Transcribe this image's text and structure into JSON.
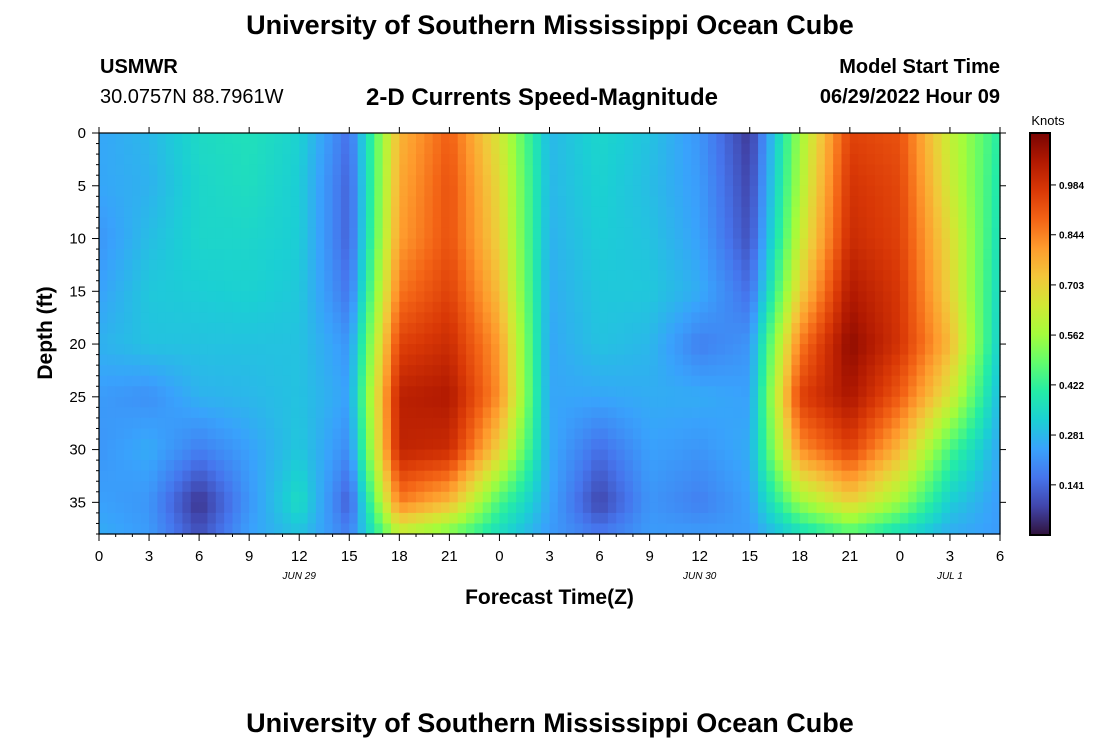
{
  "header": {
    "title": "University of Southern Mississippi Ocean Cube",
    "station": "USMWR",
    "coords": "30.0757N  88.7961W",
    "subtitle": "2-D Currents Speed-Magnitude",
    "model_start_label": "Model Start Time",
    "model_start_value": "06/29/2022 Hour 09"
  },
  "footer": {
    "title": "University of Southern Mississippi Ocean Cube"
  },
  "colors": {
    "colormap": [
      "#30123b",
      "#4145ab",
      "#4675ed",
      "#39a2fc",
      "#1bcfd4",
      "#24eca6",
      "#61fc6c",
      "#a4fc3b",
      "#d1e834",
      "#f3c63a",
      "#fe9b2d",
      "#f36315",
      "#d93806",
      "#b11901",
      "#7a0402"
    ]
  },
  "chart_data": {
    "type": "heatmap",
    "xlabel": "Forecast Time(Z)",
    "ylabel": "Depth (ft)",
    "colorbar_label": "Knots",
    "x_hours_from_start": [
      0,
      48
    ],
    "x_ticks": [
      {
        "h": 0,
        "label": "0"
      },
      {
        "h": 3,
        "label": "3"
      },
      {
        "h": 6,
        "label": "6"
      },
      {
        "h": 9,
        "label": "9"
      },
      {
        "h": 12,
        "label": "12"
      },
      {
        "h": 15,
        "label": "15"
      },
      {
        "h": 18,
        "label": "18"
      },
      {
        "h": 21,
        "label": "21"
      },
      {
        "h": 24,
        "label": "0"
      },
      {
        "h": 27,
        "label": "3"
      },
      {
        "h": 30,
        "label": "6"
      },
      {
        "h": 33,
        "label": "9"
      },
      {
        "h": 36,
        "label": "12"
      },
      {
        "h": 39,
        "label": "15"
      },
      {
        "h": 42,
        "label": "18"
      },
      {
        "h": 45,
        "label": "21"
      },
      {
        "h": 48,
        "label": "0"
      },
      {
        "h": 51,
        "label": "3"
      },
      {
        "h": 54,
        "label": "6"
      }
    ],
    "x_range_hours": [
      0,
      54
    ],
    "date_labels": [
      {
        "h": 12,
        "label": "JUN 29"
      },
      {
        "h": 36,
        "label": "JUN 30"
      },
      {
        "h": 51,
        "label": "JUL 1"
      }
    ],
    "y_ticks": [
      0,
      5,
      10,
      15,
      20,
      25,
      30,
      35
    ],
    "y_range": [
      0,
      38
    ],
    "colorbar_ticks": [
      0.141,
      0.281,
      0.422,
      0.562,
      0.703,
      0.844,
      0.984
    ],
    "colorbar_range": [
      0.0,
      1.13
    ],
    "speed_grid": {
      "x_step_hours": 3,
      "depths_ft": [
        0,
        5,
        10,
        15,
        20,
        25,
        30,
        35,
        38
      ],
      "columns": [
        [
          0.25,
          0.25,
          0.22,
          0.24,
          0.27,
          0.23,
          0.22,
          0.24,
          0.26
        ],
        [
          0.28,
          0.27,
          0.29,
          0.31,
          0.3,
          0.21,
          0.26,
          0.22,
          0.23
        ],
        [
          0.35,
          0.34,
          0.34,
          0.32,
          0.3,
          0.27,
          0.18,
          0.05,
          0.1
        ],
        [
          0.37,
          0.36,
          0.34,
          0.33,
          0.3,
          0.28,
          0.24,
          0.22,
          0.24
        ],
        [
          0.33,
          0.32,
          0.32,
          0.31,
          0.3,
          0.3,
          0.31,
          0.36,
          0.3
        ],
        [
          0.15,
          0.13,
          0.13,
          0.16,
          0.22,
          0.24,
          0.2,
          0.12,
          0.18
        ],
        [
          0.76,
          0.78,
          0.8,
          0.86,
          0.95,
          1.03,
          1.02,
          0.85,
          0.6
        ],
        [
          0.9,
          0.92,
          0.92,
          0.95,
          1.0,
          1.05,
          1.0,
          0.75,
          0.5
        ],
        [
          0.65,
          0.68,
          0.7,
          0.74,
          0.8,
          0.82,
          0.7,
          0.45,
          0.35
        ],
        [
          0.28,
          0.28,
          0.27,
          0.26,
          0.25,
          0.25,
          0.26,
          0.25,
          0.23
        ],
        [
          0.34,
          0.33,
          0.32,
          0.31,
          0.3,
          0.25,
          0.15,
          0.08,
          0.17
        ],
        [
          0.3,
          0.29,
          0.3,
          0.31,
          0.28,
          0.26,
          0.24,
          0.22,
          0.23
        ],
        [
          0.22,
          0.23,
          0.24,
          0.26,
          0.18,
          0.26,
          0.22,
          0.18,
          0.23
        ],
        [
          0.06,
          0.08,
          0.1,
          0.15,
          0.22,
          0.24,
          0.26,
          0.24,
          0.23
        ],
        [
          0.56,
          0.58,
          0.62,
          0.7,
          0.85,
          0.95,
          0.82,
          0.55,
          0.35
        ],
        [
          0.95,
          0.98,
          1.0,
          1.05,
          1.1,
          1.06,
          0.95,
          0.7,
          0.45
        ],
        [
          0.92,
          0.94,
          0.95,
          0.97,
          0.98,
          0.9,
          0.75,
          0.55,
          0.35
        ],
        [
          0.62,
          0.64,
          0.68,
          0.7,
          0.75,
          0.65,
          0.45,
          0.32,
          0.26
        ],
        [
          0.4,
          0.38,
          0.36,
          0.34,
          0.32,
          0.28,
          0.25,
          0.23,
          0.23
        ]
      ]
    }
  }
}
